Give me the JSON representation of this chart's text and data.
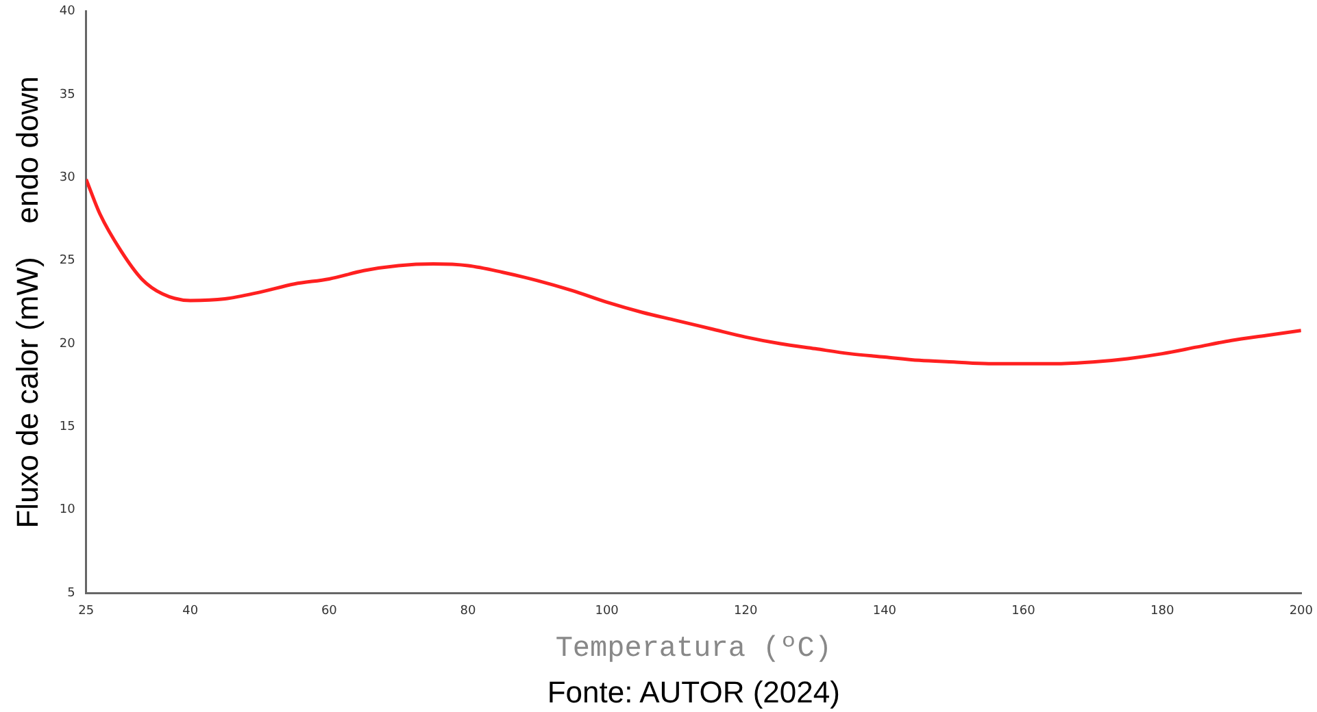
{
  "chart_data": {
    "type": "line",
    "xlabel": "Temperatura (ºC)",
    "ylabel": "Fluxo de calor (mW)    endo down",
    "annotations": [
      "Fonte: AUTOR (2024)"
    ],
    "x": [
      25,
      27,
      30,
      33,
      36,
      40,
      45,
      50,
      55,
      60,
      65,
      70,
      75,
      80,
      85,
      90,
      95,
      100,
      105,
      110,
      115,
      120,
      125,
      130,
      135,
      140,
      145,
      150,
      155,
      160,
      165,
      170,
      175,
      180,
      185,
      190,
      195,
      200
    ],
    "series": [
      {
        "color": "#ff2020",
        "values": [
          29.9,
          27.8,
          25.6,
          23.9,
          23.0,
          22.6,
          22.7,
          23.1,
          23.6,
          23.9,
          24.4,
          24.7,
          24.8,
          24.7,
          24.3,
          23.8,
          23.2,
          22.5,
          21.9,
          21.4,
          20.9,
          20.4,
          20.0,
          19.7,
          19.4,
          19.2,
          19.0,
          18.9,
          18.8,
          18.8,
          18.8,
          18.9,
          19.1,
          19.4,
          19.8,
          20.2,
          20.5,
          20.8
        ]
      }
    ],
    "xlim": [
      25,
      200
    ],
    "xticks": [
      25,
      40,
      60,
      80,
      100,
      120,
      140,
      160,
      180,
      200
    ],
    "ylim": [
      5,
      40
    ],
    "yticks": [
      5,
      10,
      15,
      20,
      25,
      30,
      35,
      40
    ],
    "grid": false,
    "legend": false,
    "marker": "none",
    "line_style": "solid"
  }
}
